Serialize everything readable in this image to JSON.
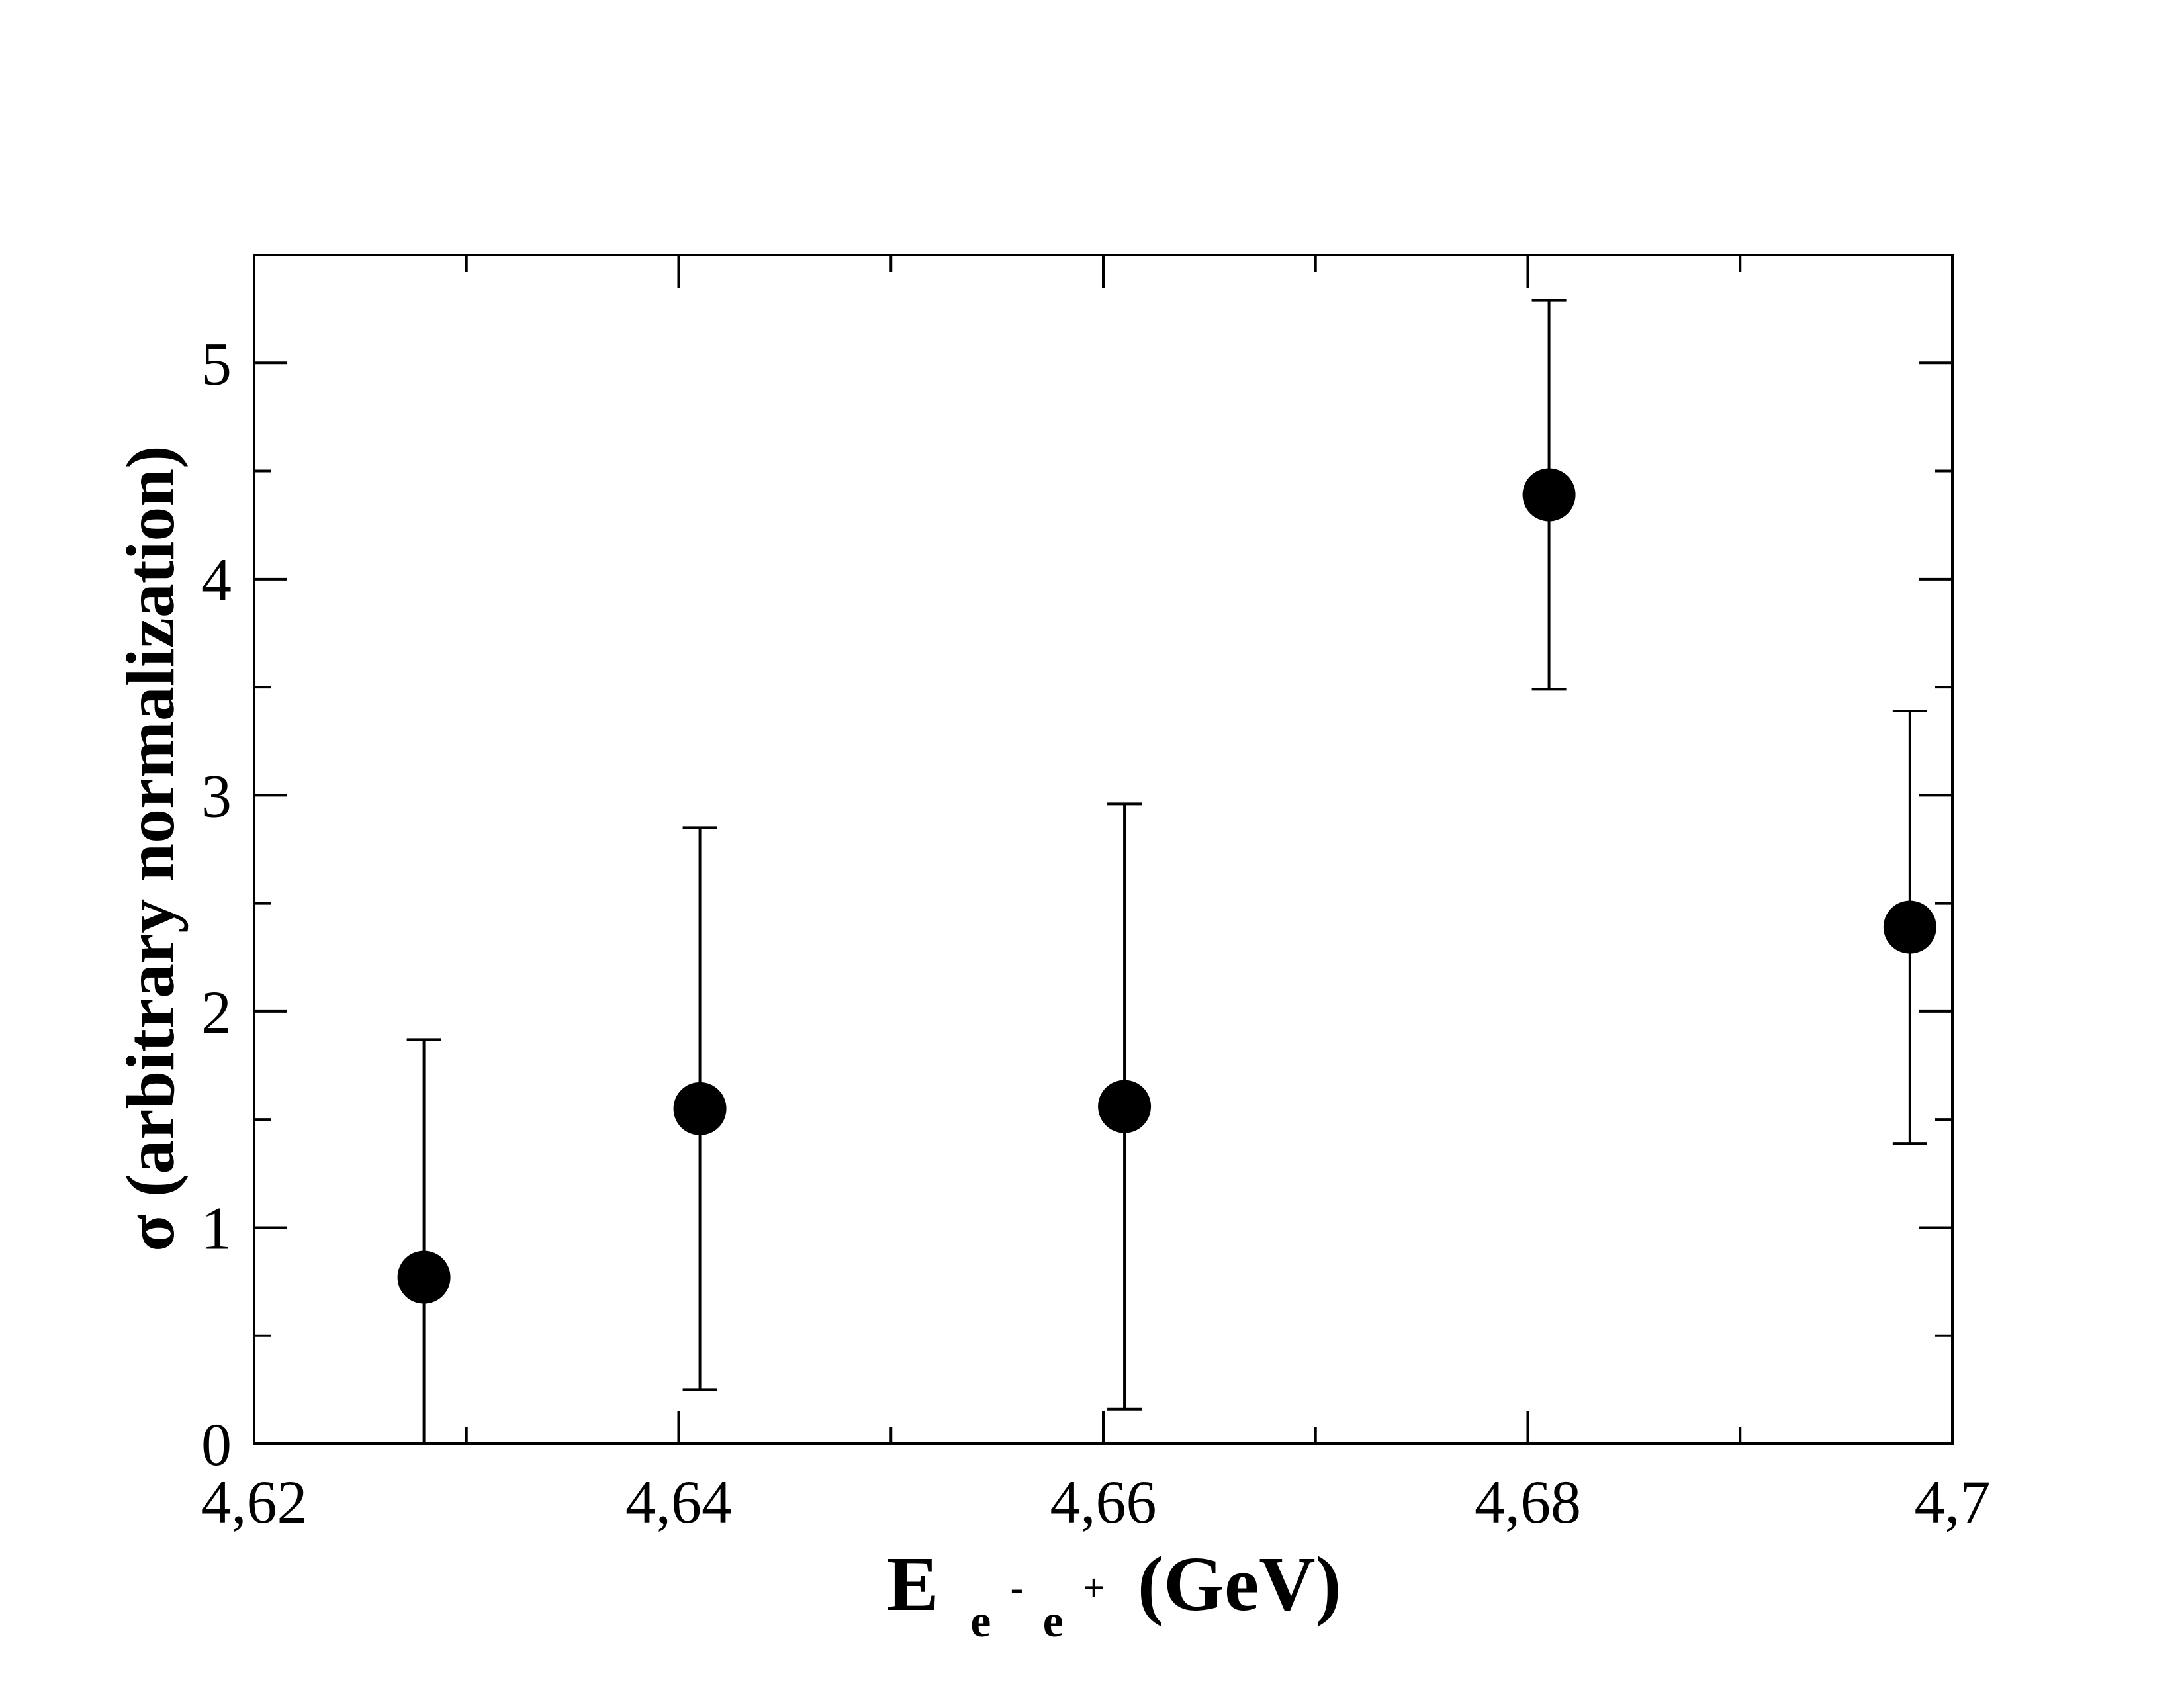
{
  "chart_data": {
    "type": "scatter",
    "title": "",
    "xlabel": {
      "main": "E",
      "sub_a": "e",
      "sup_a": "-",
      "sub_b": "e",
      "sup_b": "+",
      "unit": "(GeV)"
    },
    "ylabel": "σ (arbitrary normalization)",
    "xlim": [
      4.62,
      4.7
    ],
    "ylim": [
      0,
      5.5
    ],
    "x_major_ticks": [
      4.62,
      4.64,
      4.66,
      4.68,
      4.7
    ],
    "x_minor_ticks": [
      4.63,
      4.65,
      4.67,
      4.69
    ],
    "x_tick_labels": [
      "4,62",
      "4,64",
      "4,66",
      "4,68",
      "4,7"
    ],
    "y_major_ticks": [
      0,
      1,
      2,
      3,
      4,
      5
    ],
    "y_minor_ticks": [
      0.5,
      1.5,
      2.5,
      3.5,
      4.5
    ],
    "y_tick_labels": [
      "0",
      "1",
      "2",
      "3",
      "4",
      "5"
    ],
    "grid": false,
    "colors": {
      "marker": "#000000",
      "axes": "#000000"
    },
    "series": [
      {
        "points": [
          {
            "x": 4.628,
            "y": 0.77,
            "err_low": 0.0,
            "err_high": 1.87
          },
          {
            "x": 4.641,
            "y": 1.55,
            "err_low": 0.25,
            "err_high": 2.85
          },
          {
            "x": 4.661,
            "y": 1.56,
            "err_low": 0.16,
            "err_high": 2.96
          },
          {
            "x": 4.681,
            "y": 4.39,
            "err_low": 3.49,
            "err_high": 5.29
          },
          {
            "x": 4.698,
            "y": 2.39,
            "err_low": 1.39,
            "err_high": 3.39
          }
        ]
      }
    ]
  }
}
